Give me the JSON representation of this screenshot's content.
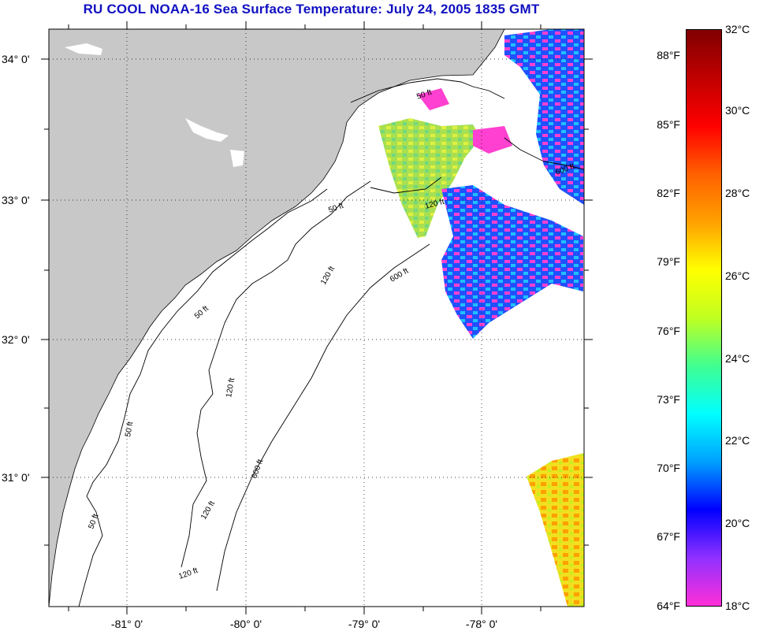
{
  "title": "RU COOL  NOAA-16  Sea Surface Temperature:  July 24, 2005 1835 GMT",
  "map": {
    "latitude_labels": [
      "34° 0'",
      "33° 0'",
      "32° 0'",
      "31° 0'"
    ],
    "longitude_labels": [
      "-81° 0'",
      "-80° 0'",
      "-79° 0'",
      "-78° 0'"
    ],
    "contour_labels": [
      "50 ft",
      "50 ft",
      "50 ft",
      "50 ft",
      "50 ft",
      "120 ft",
      "120 ft",
      "120 ft",
      "120 ft",
      "120 ft",
      "600 ft",
      "600 ft",
      "600 ft"
    ],
    "land_color": "#c8c8c8",
    "ocean_color": "#ffffff"
  },
  "colorbar": {
    "fahrenheit_labels": [
      "88°F",
      "85°F",
      "82°F",
      "79°F",
      "76°F",
      "73°F",
      "70°F",
      "67°F",
      "64°F"
    ],
    "celsius_labels": [
      "32°C",
      "30°C",
      "28°C",
      "26°C",
      "24°C",
      "22°C",
      "20°C",
      "18°C"
    ],
    "colors": [
      "#ff30d8",
      "#9030ff",
      "#0000ff",
      "#00a0ff",
      "#00ffff",
      "#40ff90",
      "#c0ff20",
      "#ffff00",
      "#ffa000",
      "#ff6000",
      "#ff0000",
      "#c00000",
      "#800000"
    ]
  }
}
